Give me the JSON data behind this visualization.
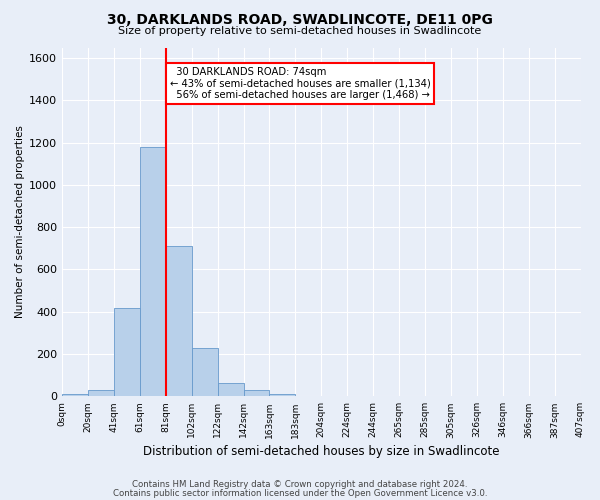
{
  "title1": "30, DARKLANDS ROAD, SWADLINCOTE, DE11 0PG",
  "title2": "Size of property relative to semi-detached houses in Swadlincote",
  "xlabel": "Distribution of semi-detached houses by size in Swadlincote",
  "ylabel": "Number of semi-detached properties",
  "footer1": "Contains HM Land Registry data © Crown copyright and database right 2024.",
  "footer2": "Contains public sector information licensed under the Open Government Licence v3.0.",
  "bin_labels": [
    "0sqm",
    "20sqm",
    "41sqm",
    "61sqm",
    "81sqm",
    "102sqm",
    "122sqm",
    "142sqm",
    "163sqm",
    "183sqm",
    "204sqm",
    "224sqm",
    "244sqm",
    "265sqm",
    "285sqm",
    "305sqm",
    "326sqm",
    "346sqm",
    "366sqm",
    "387sqm",
    "407sqm"
  ],
  "bar_heights": [
    10,
    28,
    420,
    1180,
    710,
    230,
    62,
    28,
    12,
    0,
    0,
    0,
    0,
    0,
    0,
    0,
    0,
    0,
    0,
    0
  ],
  "bar_color": "#b8d0ea",
  "bar_edgecolor": "#6699cc",
  "ylim": [
    0,
    1650
  ],
  "yticks": [
    0,
    200,
    400,
    600,
    800,
    1000,
    1200,
    1400,
    1600
  ],
  "vline_bin_index": 4,
  "annotation_line1": "  30 DARKLANDS ROAD: 74sqm",
  "annotation_line2": "← 43% of semi-detached houses are smaller (1,134)",
  "annotation_line3": "  56% of semi-detached houses are larger (1,468) →",
  "annotation_box_color": "white",
  "annotation_box_edgecolor": "red",
  "background_color": "#e8eef8",
  "n_bins": 20,
  "n_labels": 21
}
